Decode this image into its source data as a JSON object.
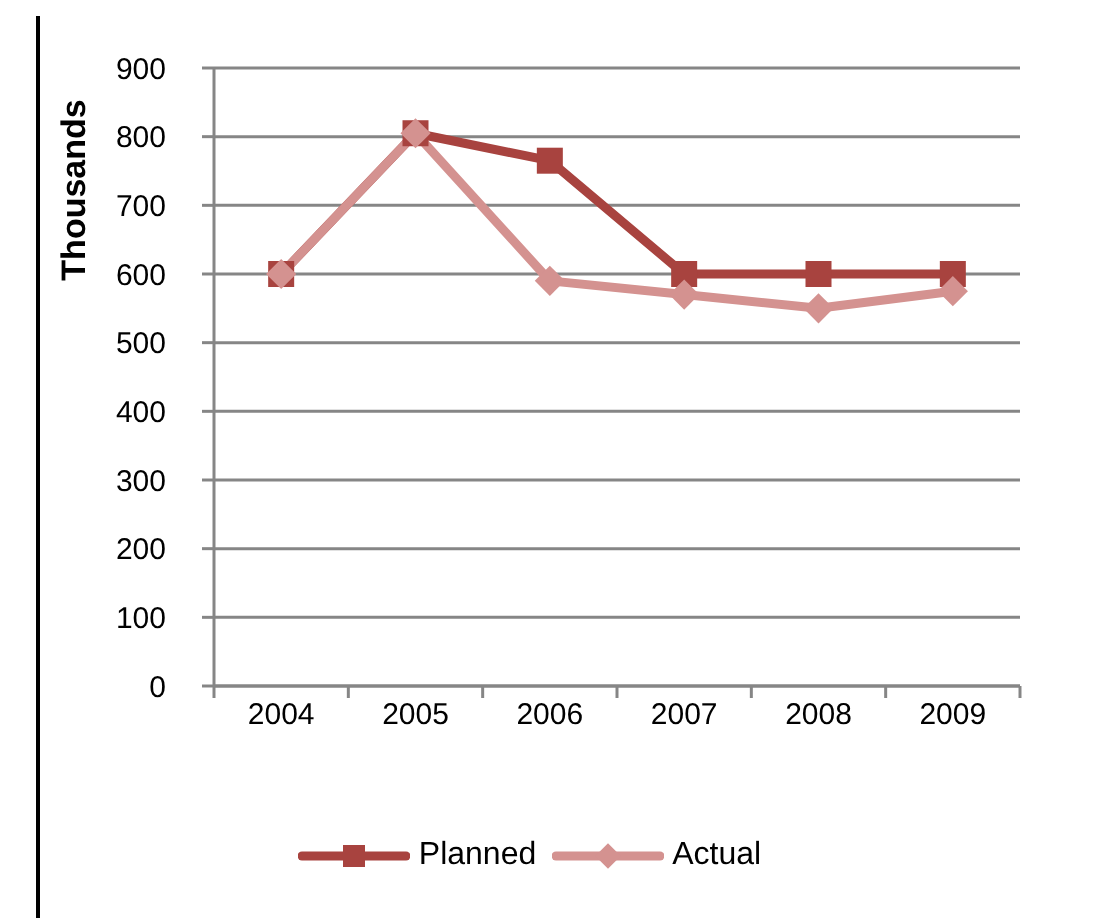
{
  "chart_data": {
    "type": "line",
    "ylabel": "Thousands",
    "categories": [
      "2004",
      "2005",
      "2006",
      "2007",
      "2008",
      "2009"
    ],
    "series": [
      {
        "name": "Planned",
        "color": "#a8433f",
        "marker": "square",
        "values": [
          600,
          805,
          765,
          600,
          600,
          600
        ]
      },
      {
        "name": "Actual",
        "color": "#d49290",
        "marker": "diamond",
        "values": [
          600,
          805,
          590,
          570,
          550,
          575
        ]
      }
    ],
    "ylim": [
      0,
      900
    ],
    "yticks": [
      0,
      100,
      200,
      300,
      400,
      500,
      600,
      700,
      800,
      900
    ],
    "grid": "y",
    "legend": "bottom",
    "line_style": "solid"
  }
}
